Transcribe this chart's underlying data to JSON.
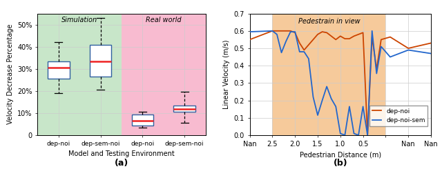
{
  "box_data": {
    "dep_noi_sim": {
      "median": 30.5,
      "q1": 25.5,
      "q3": 33.5,
      "whislo": 19.0,
      "whishi": 42.0
    },
    "dep_sem_noi_sim": {
      "median": 33.5,
      "q1": 26.5,
      "q3": 41.0,
      "whislo": 20.5,
      "whishi": 53.0
    },
    "dep_noi_real": {
      "median": 6.5,
      "q1": 4.5,
      "q3": 9.5,
      "whislo": 3.5,
      "whishi": 10.5
    },
    "dep_sem_noi_real": {
      "median": 12.0,
      "q1": 10.5,
      "q3": 13.5,
      "whislo": 5.5,
      "whishi": 19.5
    }
  },
  "box_labels": [
    "dep-noi",
    "dep-sem-noi",
    "dep-noi",
    "dep-sem-noi"
  ],
  "sim_bg_color": "#c8e6c9",
  "real_bg_color": "#f8bbd0",
  "sim_label": "Simulation",
  "real_label": "Real world",
  "ylabel_left": "Velocity Decrease Percentage",
  "xlabel_left": "Model and Testing Environment",
  "caption_left": "(a)",
  "ylim_left": [
    0,
    55
  ],
  "yticks_left": [
    0,
    10,
    20,
    30,
    40,
    50
  ],
  "yticklabels_left": [
    "0",
    "10%",
    "20%",
    "30%",
    "40%",
    "50%"
  ],
  "box_color": "#3060a0",
  "median_color": "#ee2222",
  "line_color_orange": "#cc4400",
  "line_color_blue": "#2266cc",
  "pedestrian_bg_color": "#f5c18a",
  "pedestrian_label": "Pedestrain in view",
  "ylabel_right": "Linear Velocity (m/s)",
  "xlabel_right": "Pedestrian Distance (m)",
  "caption_right": "(b)",
  "ylim_right": [
    0,
    0.7
  ],
  "yticks_right": [
    0.0,
    0.1,
    0.2,
    0.3,
    0.4,
    0.5,
    0.6,
    0.7
  ],
  "dep_noi_x": [
    0,
    1,
    1.2,
    1.4,
    1.6,
    1.8,
    2.0,
    2.2,
    2.4,
    2.6,
    2.8,
    3.0,
    3.2,
    3.4,
    3.6,
    3.8,
    4.0,
    4.2,
    4.4,
    4.6,
    4.8,
    5.0,
    5.2,
    5.4,
    5.6,
    5.8,
    6.2,
    7.0,
    8.0
  ],
  "dep_noi_y": [
    0.55,
    0.6,
    0.6,
    0.6,
    0.6,
    0.6,
    0.59,
    0.53,
    0.49,
    0.52,
    0.55,
    0.58,
    0.595,
    0.59,
    0.57,
    0.55,
    0.57,
    0.555,
    0.555,
    0.57,
    0.58,
    0.59,
    0.0,
    0.565,
    0.38,
    0.55,
    0.565,
    0.5,
    0.53
  ],
  "dep_noi_sem_x": [
    0,
    1,
    1.2,
    1.4,
    1.6,
    1.8,
    2.0,
    2.2,
    2.4,
    2.6,
    2.8,
    3.0,
    3.2,
    3.4,
    3.6,
    3.8,
    4.0,
    4.2,
    4.4,
    4.6,
    4.8,
    5.0,
    5.2,
    5.4,
    5.6,
    5.8,
    6.2,
    7.0,
    8.0
  ],
  "dep_noi_sem_y": [
    0.595,
    0.6,
    0.58,
    0.475,
    0.54,
    0.595,
    0.595,
    0.48,
    0.48,
    0.44,
    0.22,
    0.115,
    0.2,
    0.28,
    0.21,
    0.165,
    0.01,
    0.0,
    0.165,
    0.01,
    0.0,
    0.165,
    0.0,
    0.6,
    0.355,
    0.51,
    0.45,
    0.49,
    0.47
  ],
  "legend_dep_noi": "dep-noi",
  "legend_dep_noi_sem": "dep-noi-sem",
  "xtick_pos": [
    0,
    1,
    2,
    3,
    4,
    5,
    6,
    7,
    8
  ],
  "xtick_labels": [
    "Nan",
    "2.5",
    "2.0",
    "1.5",
    "1.0",
    "0.5",
    "",
    "Nan",
    "Nan"
  ]
}
